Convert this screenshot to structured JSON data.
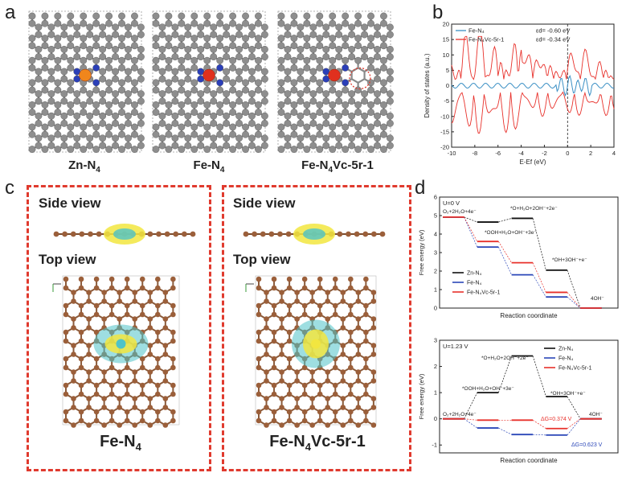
{
  "panels": {
    "a": {
      "label": "a",
      "structures": [
        {
          "caption": "Zn-N",
          "sub": "4",
          "suffix": "",
          "metal_color": "#f0861c"
        },
        {
          "caption": "Fe-N",
          "sub": "4",
          "suffix": "",
          "metal_color": "#e0301e"
        },
        {
          "caption": "Fe-N",
          "sub": "4",
          "suffix": "Vc-5r-1",
          "metal_color": "#e0301e"
        }
      ]
    },
    "b": {
      "label": "b"
    },
    "c": {
      "label": "c",
      "side_view": "Side view",
      "top_view": "Top view",
      "left_caption": {
        "main": "Fe-N",
        "sub": "4",
        "suffix": ""
      },
      "right_caption": {
        "main": "Fe-N",
        "sub": "4",
        "suffix": "Vc-5r-1"
      }
    },
    "d": {
      "label": "d"
    }
  },
  "colors": {
    "carbon": "#8e8e8e",
    "nitrogen": "#2b3fb8",
    "zn": "#f0861c",
    "fe": "#e0301e",
    "dashed_box": "#e03a2e",
    "c_atom": "#9b5f3a",
    "density_yellow": "#f2e640",
    "density_cyan": "#4fc3c9"
  },
  "chart_data": [
    {
      "type": "line",
      "panel": "b",
      "xlabel": "E-Ef (eV)",
      "ylabel": "Density of states (a.u.)",
      "xlim": [
        -10,
        4
      ],
      "ylim": [
        -20,
        20
      ],
      "xticks": [
        "-10",
        "-8",
        "-6",
        "-4",
        "-2",
        "0",
        "2",
        "4"
      ],
      "yticks": [
        "-20",
        "-15",
        "-10",
        "-5",
        "0",
        "5",
        "10",
        "15",
        "20"
      ],
      "legend": [
        {
          "name": "Fe-N₄",
          "color": "#3a8fc4"
        },
        {
          "name": "Fe-N₄Vc-5r-1",
          "color": "#e8312b"
        }
      ],
      "annotations": [
        "εd= -0.60 eV",
        "εd= -0.34 eV"
      ],
      "series": [
        {
          "name": "Fe-N₄",
          "x": [
            -10,
            -9,
            -8,
            -7,
            -6.5,
            -6,
            -5.5,
            -5,
            -4,
            -3,
            -2,
            -1,
            -0.5,
            0,
            0.5,
            1,
            1.5,
            2,
            2.5,
            3,
            4
          ],
          "y": [
            0,
            0.1,
            0.2,
            0.3,
            0.4,
            0.5,
            0.8,
            0.6,
            0.4,
            0.5,
            0.6,
            0.8,
            1.5,
            2.5,
            3,
            1.5,
            2.8,
            1,
            0.5,
            0.3,
            0
          ]
        },
        {
          "name": "Fe-N₄Vc-5r-1",
          "x": [
            -10,
            -9.5,
            -9,
            -8.5,
            -8,
            -7.5,
            -7,
            -6.5,
            -6,
            -5.5,
            -5,
            -4.5,
            -4,
            -3.5,
            -3,
            -2.5,
            -2,
            -1.5,
            -1,
            -0.5,
            0,
            0.5,
            1,
            1.5,
            2,
            2.5,
            3,
            3.5,
            4
          ],
          "y": [
            4,
            6,
            5,
            9,
            8,
            11,
            7,
            13,
            15,
            12,
            9,
            11,
            6,
            8,
            5,
            7,
            4,
            6,
            3,
            5,
            4,
            6,
            3,
            8,
            2,
            5,
            3,
            9,
            5
          ]
        }
      ]
    },
    {
      "type": "line",
      "panel": "d-top",
      "title": "U=0 V",
      "xlabel": "Reaction coordinate",
      "ylabel": "Free energy (eV)",
      "ylim": [
        0,
        6
      ],
      "yticks": [
        "0",
        "1",
        "2",
        "3",
        "4",
        "5",
        "6"
      ],
      "step_labels": [
        "O₂+2H₂O+4e⁻",
        "*O+H₂O+2OH⁻+2e⁻",
        "*OOH+H₂O+OH⁻+3e⁻",
        "*OH+3OH⁻+e⁻",
        "4OH⁻"
      ],
      "series": [
        {
          "name": "Zn-N₄",
          "color": "#111111",
          "values": [
            4.92,
            4.65,
            4.85,
            2.05,
            0
          ]
        },
        {
          "name": "Fe-N₄",
          "color": "#2b47b8",
          "values": [
            4.92,
            3.3,
            1.8,
            0.6,
            0
          ]
        },
        {
          "name": "Fe-N₄Vc-5r-1",
          "color": "#e8312b",
          "values": [
            4.92,
            3.6,
            2.45,
            0.85,
            0
          ]
        }
      ]
    },
    {
      "type": "line",
      "panel": "d-bottom",
      "title": "U=1.23 V",
      "xlabel": "Reaction coordinate",
      "ylabel": "Free energy (eV)",
      "ylim": [
        -1.3,
        3
      ],
      "yticks": [
        "-1",
        "0",
        "1",
        "2",
        "3"
      ],
      "step_labels": [
        "O₂+2H₂O+4e⁻",
        "*OOH+H₂O+OH⁻+3e⁻",
        "*O+H₂O+2OH⁻+2e⁻",
        "*OH+3OH⁻+e⁻",
        "4OH⁻"
      ],
      "annotations": [
        "ΔG=0.374 V",
        "ΔG=0.623 V"
      ],
      "series": [
        {
          "name": "Zn-N₄",
          "color": "#111111",
          "values": [
            0,
            1.0,
            2.4,
            0.85,
            0
          ]
        },
        {
          "name": "Fe-N₄",
          "color": "#2b47b8",
          "values": [
            0,
            -0.35,
            -0.6,
            -0.62,
            0
          ]
        },
        {
          "name": "Fe-N₄Vc-5r-1",
          "color": "#e8312b",
          "values": [
            0,
            -0.05,
            -0.05,
            -0.37,
            0
          ]
        }
      ]
    }
  ]
}
